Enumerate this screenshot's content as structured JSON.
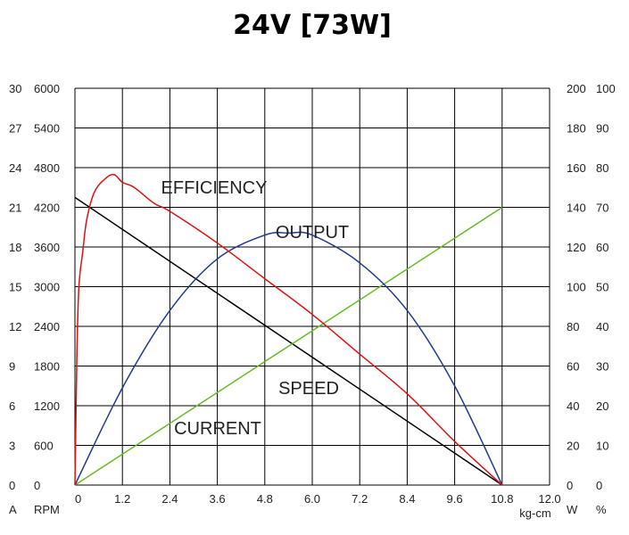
{
  "chart_data": {
    "type": "line",
    "title": "24V [73W]",
    "x_axis": {
      "unit": "kg-cm",
      "min": 0,
      "max": 12.0,
      "ticks": [
        "0",
        "1.2",
        "2.4",
        "3.6",
        "4.8",
        "6.0",
        "7.2",
        "8.4",
        "9.6",
        "10.8",
        "12.0"
      ]
    },
    "y_axes": [
      {
        "unit": "A",
        "min": 0,
        "max": 30,
        "ticks": [
          "0",
          "3",
          "6",
          "9",
          "12",
          "15",
          "18",
          "21",
          "24",
          "27",
          "30"
        ]
      },
      {
        "unit": "RPM",
        "min": 0,
        "max": 6000,
        "ticks": [
          "0",
          "600",
          "1200",
          "1800",
          "2400",
          "3000",
          "3600",
          "4200",
          "4800",
          "5400",
          "6000"
        ]
      },
      {
        "unit": "W",
        "min": 0,
        "max": 200,
        "ticks": [
          "0",
          "20",
          "40",
          "60",
          "80",
          "100",
          "120",
          "140",
          "160",
          "180",
          "200"
        ]
      },
      {
        "unit": "%",
        "min": 0,
        "max": 100,
        "ticks": [
          "0",
          "10",
          "20",
          "30",
          "40",
          "50",
          "60",
          "70",
          "80",
          "90",
          "100"
        ]
      }
    ],
    "grid": true,
    "series": [
      {
        "name": "SPEED",
        "axis": "RPM",
        "color": "#000000",
        "x": [
          0,
          10.8
        ],
        "y": [
          4350,
          0
        ]
      },
      {
        "name": "CURRENT",
        "axis": "A",
        "color": "#66bb22",
        "x": [
          0,
          10.8
        ],
        "y": [
          0,
          21
        ]
      },
      {
        "name": "OUTPUT",
        "axis": "W",
        "color": "#1f3a8f",
        "x": [
          0,
          1.2,
          2.4,
          3.6,
          4.8,
          5.4,
          6.0,
          7.2,
          8.4,
          9.6,
          10.8
        ],
        "y": [
          0,
          49,
          88,
          114,
          126,
          127,
          126,
          112,
          88,
          50,
          0
        ]
      },
      {
        "name": "EFFICIENCY",
        "axis": "%",
        "color": "#dd1111",
        "x": [
          0,
          0.05,
          0.1,
          0.2,
          0.3,
          0.5,
          0.8,
          1.0,
          1.2,
          1.5,
          2.0,
          2.4,
          3.6,
          4.8,
          6.0,
          7.2,
          8.4,
          9.6,
          10.8
        ],
        "y": [
          0,
          33,
          50,
          59,
          67,
          74,
          77.5,
          78.2,
          76.3,
          75,
          71,
          69,
          61,
          52,
          43,
          33,
          23,
          11,
          0
        ]
      }
    ],
    "annotations": [
      {
        "text": "EFFICIENCY",
        "series": "EFFICIENCY"
      },
      {
        "text": "OUTPUT",
        "series": "OUTPUT"
      },
      {
        "text": "SPEED",
        "series": "SPEED"
      },
      {
        "text": "CURRENT",
        "series": "CURRENT"
      }
    ]
  }
}
